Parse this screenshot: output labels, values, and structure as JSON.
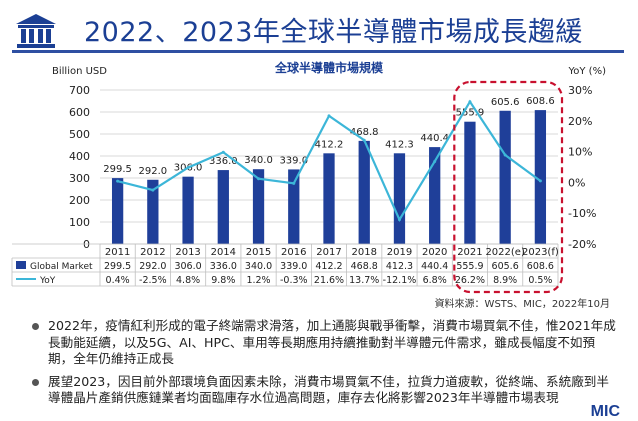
{
  "title": "2022、2023年全球半導體市場成長趨緩",
  "source_note": "資料來源：WSTS、MIC，2022年10月",
  "bullets": [
    "2022年，疫情紅利形成的電子終端需求滑落，加上通膨與戰爭衝擊，消費市場買氣不佳，惟2021年成長動能延續，以及5G、AI、HPC、車用等長期應用持續推動對半導體元件需求，雖成長幅度不如預期，全年仍維持正成長",
    "展望2023，因目前外部環境負面因素未除，消費市場買氣不佳，拉貨力道疲軟，從終端、系統廠到半導體晶片產銷供應鏈業者均面臨庫存水位過高問題，庫存去化將影響2023年半導體市場表現"
  ],
  "brand": "MIC",
  "colors": {
    "bar": "#1f3f99",
    "line": "#3cb6d8",
    "highlight": "#c8102e",
    "title": "#1b3f94"
  },
  "chart_data": {
    "type": "bar",
    "title": "全球半導體市場規模",
    "ylabel": "Billion USD",
    "y2label": "YoY (%)",
    "ylim": [
      0,
      700
    ],
    "yticks": [
      0,
      100,
      200,
      300,
      400,
      500,
      600,
      700
    ],
    "y2lim": [
      -20,
      30
    ],
    "y2ticks": [
      "-20%",
      "-10%",
      "0%",
      "10%",
      "20%",
      "30%"
    ],
    "y2tick_values": [
      -20,
      -10,
      0,
      10,
      20,
      30
    ],
    "categories": [
      "2011",
      "2012",
      "2013",
      "2014",
      "2015",
      "2016",
      "2017",
      "2018",
      "2019",
      "2020",
      "2021",
      "2022(e)",
      "2023(f)"
    ],
    "bar_labels": [
      "299.5",
      "292.0",
      "306.0",
      "336.0",
      "340.0",
      "339.0",
      "412.2",
      "468.8",
      "412.3",
      "440.4",
      "555.9",
      "605.6",
      "608.6"
    ],
    "series": [
      {
        "name": "Global Market",
        "type": "bar",
        "values": [
          299.5,
          292.0,
          306.0,
          336.0,
          340.0,
          339.0,
          412.2,
          468.8,
          412.3,
          440.4,
          555.9,
          605.6,
          608.6
        ],
        "table": [
          "299.5",
          "292.0",
          "306.0",
          "336.0",
          "340.0",
          "339.0",
          "412.2",
          "468.8",
          "412.3",
          "440.4",
          "555.9",
          "605.6",
          "608.6"
        ]
      },
      {
        "name": "YoY",
        "type": "line",
        "axis": "right",
        "values": [
          0.4,
          -2.5,
          4.8,
          9.8,
          1.2,
          -0.3,
          21.6,
          13.7,
          -12.1,
          6.8,
          26.2,
          8.9,
          0.5
        ],
        "table": [
          "0.4%",
          "-2.5%",
          "4.8%",
          "9.8%",
          "1.2%",
          "-0.3%",
          "21.6%",
          "13.7%",
          "-12.1%",
          "6.8%",
          "26.2%",
          "8.9%",
          "0.5%"
        ]
      }
    ],
    "highlight_categories": [
      "2021",
      "2022(e)",
      "2023(f)"
    ],
    "grid": true
  }
}
